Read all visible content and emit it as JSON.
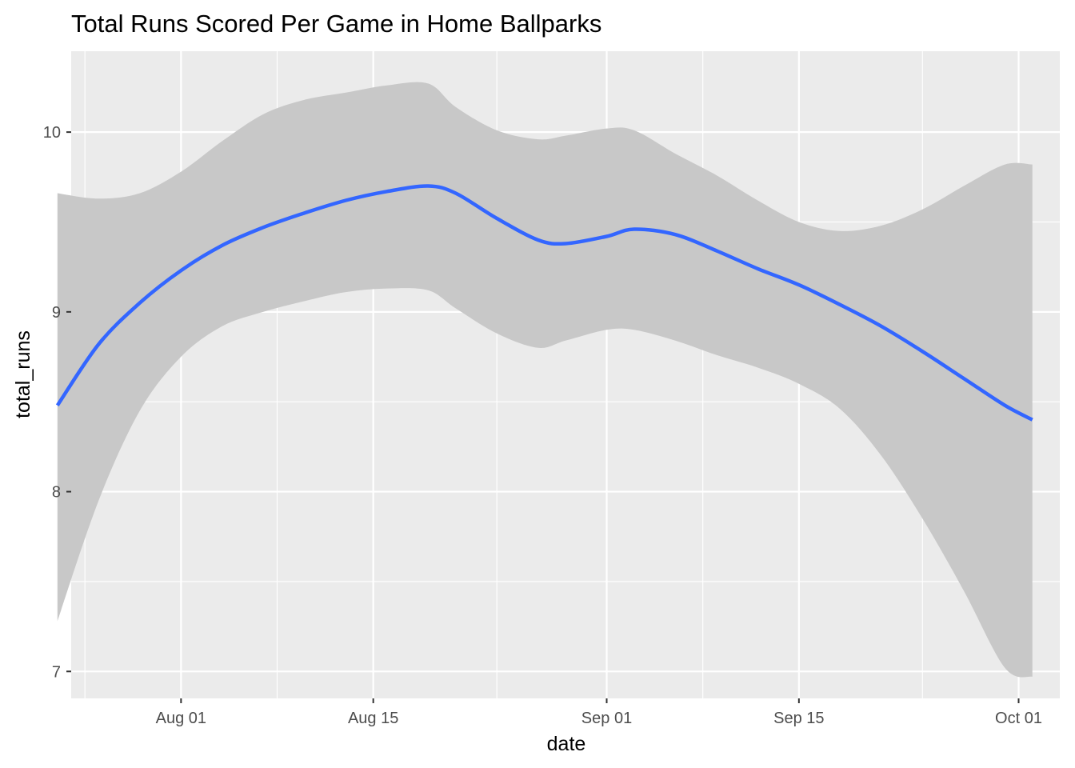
{
  "chart_data": {
    "type": "line",
    "title": "Total Runs Scored Per Game in Home Ballparks",
    "xlabel": "date",
    "ylabel": "total_runs",
    "x_axis_type": "date",
    "xlim": [
      "2021-07-24",
      "2021-10-04"
    ],
    "ylim": [
      6.85,
      10.45
    ],
    "x_ticks": [
      {
        "date": "2021-08-01",
        "label": "Aug 01"
      },
      {
        "date": "2021-08-15",
        "label": "Aug 15"
      },
      {
        "date": "2021-09-01",
        "label": "Sep 01"
      },
      {
        "date": "2021-09-15",
        "label": "Sep 15"
      },
      {
        "date": "2021-10-01",
        "label": "Oct 01"
      }
    ],
    "x_minor_ticks": [
      "2021-07-25",
      "2021-08-08",
      "2021-08-24",
      "2021-09-08",
      "2021-09-24"
    ],
    "y_ticks": [
      7,
      8,
      9,
      10
    ],
    "y_minor_ticks": [
      7.5,
      8.5,
      9.5
    ],
    "grid": true,
    "legend": "none",
    "colors": {
      "panel_background": "#ebebeb",
      "grid": "#ffffff",
      "line": "#3366ff",
      "ribbon": "#c8c8c8",
      "axis_tick": "#333333",
      "tick_label": "#4d4d4d"
    },
    "series": [
      {
        "type": "smooth",
        "x": [
          "2021-07-23",
          "2021-07-26",
          "2021-07-29",
          "2021-08-01",
          "2021-08-04",
          "2021-08-07",
          "2021-08-10",
          "2021-08-13",
          "2021-08-16",
          "2021-08-19",
          "2021-08-21",
          "2021-08-24",
          "2021-08-27",
          "2021-08-29",
          "2021-09-01",
          "2021-09-03",
          "2021-09-06",
          "2021-09-09",
          "2021-09-12",
          "2021-09-15",
          "2021-09-18",
          "2021-09-21",
          "2021-09-24",
          "2021-09-27",
          "2021-09-30",
          "2021-10-02"
        ],
        "y": [
          8.48,
          8.82,
          9.05,
          9.23,
          9.37,
          9.47,
          9.55,
          9.62,
          9.67,
          9.7,
          9.66,
          9.52,
          9.4,
          9.38,
          9.42,
          9.46,
          9.43,
          9.34,
          9.24,
          9.15,
          9.04,
          8.92,
          8.78,
          8.63,
          8.48,
          8.4
        ],
        "ymin": [
          7.28,
          7.95,
          8.45,
          8.75,
          8.92,
          9.0,
          9.06,
          9.11,
          9.13,
          9.12,
          9.02,
          8.88,
          8.8,
          8.84,
          8.9,
          8.9,
          8.84,
          8.76,
          8.69,
          8.6,
          8.46,
          8.2,
          7.85,
          7.45,
          7.02,
          6.97
        ],
        "ymax": [
          9.66,
          9.63,
          9.66,
          9.78,
          9.95,
          10.1,
          10.18,
          10.22,
          10.26,
          10.27,
          10.14,
          10.01,
          9.96,
          9.98,
          10.02,
          10.01,
          9.88,
          9.76,
          9.62,
          9.5,
          9.45,
          9.48,
          9.57,
          9.7,
          9.82,
          9.82
        ]
      }
    ]
  }
}
